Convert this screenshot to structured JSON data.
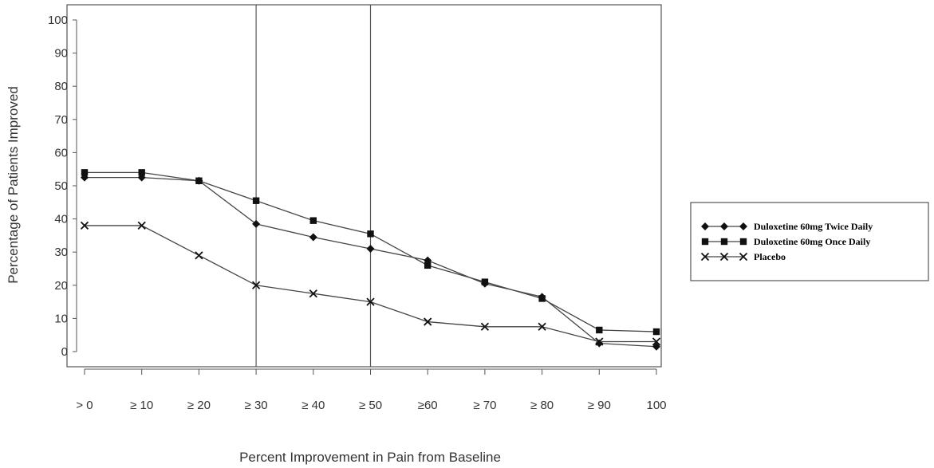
{
  "chart_data": {
    "type": "line",
    "xlabel": "Percent Improvement in Pain from Baseline",
    "ylabel": "Percentage of Patients Improved",
    "categories": [
      "> 0",
      "≥ 10",
      "≥ 20",
      "≥ 30",
      "≥ 40",
      "≥ 50",
      "≥60",
      "≥ 70",
      "≥ 80",
      "≥ 90",
      "100"
    ],
    "y_ticks": [
      "0",
      "10",
      "20",
      "30",
      "40",
      "50",
      "60",
      "70",
      "80",
      "90",
      "100"
    ],
    "ylim": [
      0,
      100
    ],
    "reference_lines_at": [
      "≥ 30",
      "≥ 50"
    ],
    "grid": false,
    "legend_position": "right",
    "series": [
      {
        "name": "Duloxetine 60mg Twice Daily",
        "marker": "diamond",
        "color": "#111111",
        "values": [
          52.5,
          52.5,
          51.5,
          38.5,
          34.5,
          31,
          27.5,
          20.5,
          16.5,
          2.5,
          1.5
        ]
      },
      {
        "name": "Duloxetine 60mg Once Daily",
        "marker": "square",
        "color": "#111111",
        "values": [
          54,
          54,
          51.5,
          45.5,
          39.5,
          35.5,
          26,
          21,
          16,
          6.5,
          6
        ]
      },
      {
        "name": "Placebo",
        "marker": "x",
        "color": "#111111",
        "values": [
          38,
          38,
          29,
          20,
          17.5,
          15,
          9,
          7.5,
          7.5,
          3,
          3
        ]
      }
    ]
  }
}
